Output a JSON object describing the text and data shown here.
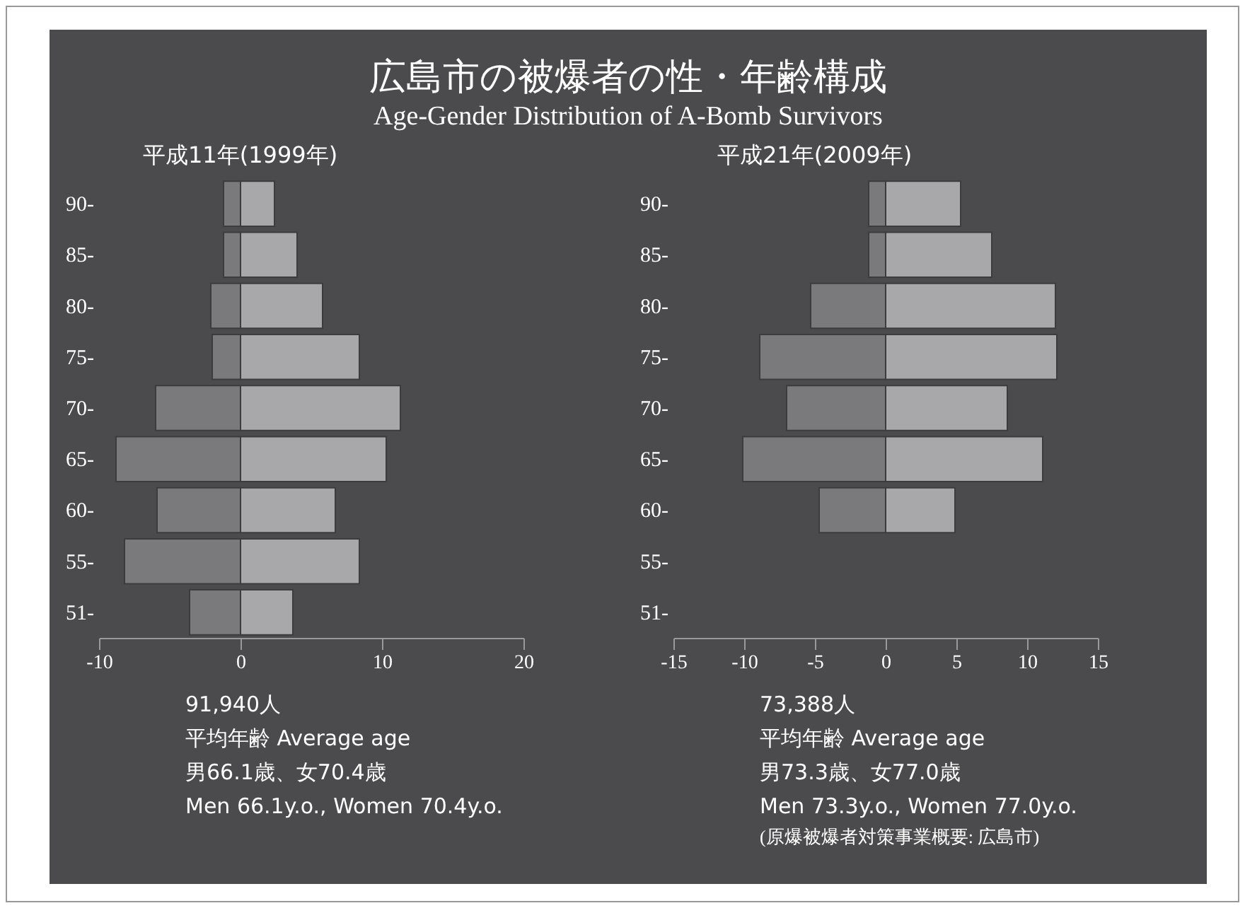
{
  "chart_data": [
    {
      "type": "bar",
      "orientation": "horizontal",
      "stacked": true,
      "title": "広島市の被爆者の性・年齢構成",
      "subtitle": "Age-Gender Distribution of A-Bomb Survivors",
      "categories": [
        "90-",
        "85-",
        "80-",
        "75-",
        "70-",
        "65-",
        "60-",
        "55-",
        "51-"
      ],
      "series": [
        {
          "color": "#7a7a7d",
          "values": [
            -1.2,
            -1.2,
            -2.1,
            -2.0,
            -6.0,
            -8.8,
            -5.9,
            -8.2,
            -3.6
          ]
        },
        {
          "color": "#a8a8ab",
          "values": [
            2.4,
            4.0,
            5.8,
            8.4,
            11.3,
            10.3,
            6.7,
            8.4,
            3.7
          ]
        }
      ],
      "xlim": [
        -10,
        20
      ],
      "xticks": [
        -10,
        0,
        10,
        20
      ],
      "annotations": [
        "平成11年(1999年)",
        "91,940人",
        "平均年齢 Average age",
        "男66.1歳、女70.4歳",
        "Men 66.1y.o., Women 70.4y.o."
      ]
    },
    {
      "type": "bar",
      "orientation": "horizontal",
      "stacked": true,
      "categories": [
        "90-",
        "85-",
        "80-",
        "75-",
        "70-",
        "65-",
        "60-",
        "55-",
        "51-"
      ],
      "series": [
        {
          "color": "#7a7a7d",
          "values": [
            -1.2,
            -1.2,
            -5.3,
            -8.9,
            -7.0,
            -10.1,
            -4.7,
            null,
            null
          ]
        },
        {
          "color": "#a8a8ab",
          "values": [
            5.3,
            7.5,
            12.0,
            12.1,
            8.6,
            11.1,
            4.9,
            null,
            null
          ]
        }
      ],
      "xlim": [
        -15,
        15
      ],
      "xticks": [
        -15,
        -10,
        -5,
        0,
        5,
        10,
        15
      ],
      "annotations": [
        "平成21年(2009年)",
        "73,388人",
        "平均年齢 Average age",
        "男73.3歳、女77.0歳",
        "Men 73.3y.o., Women 77.0y.o.",
        "(原爆被爆者対策事業概要: 広島市)"
      ]
    }
  ]
}
